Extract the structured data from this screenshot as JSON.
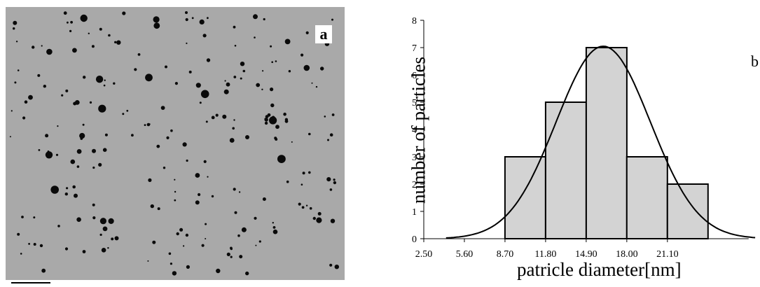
{
  "figure": {
    "panel_a_label": "a",
    "panel_b_label": "b"
  },
  "micrograph": {
    "background_color": "#a9a9a9",
    "particle_color": "#0a0a0a",
    "has_scale_bar": true
  },
  "chart_data": {
    "type": "bar",
    "title": "",
    "xlabel": "patricle diameter[nm]",
    "ylabel": "number of particles",
    "x_ticks": [
      "2.50",
      "5.60",
      "8.70",
      "11.80",
      "14.90",
      "18.00",
      "21.10"
    ],
    "bins": [
      {
        "from": 8.7,
        "to": 11.8,
        "count": 3
      },
      {
        "from": 11.8,
        "to": 14.9,
        "count": 5
      },
      {
        "from": 14.9,
        "to": 18.0,
        "count": 7
      },
      {
        "from": 18.0,
        "to": 21.1,
        "count": 3
      },
      {
        "from": 21.1,
        "to": 24.2,
        "count": 2
      }
    ],
    "fit_curve": {
      "type": "normal",
      "mean": 16.2,
      "sd": 3.6,
      "peak": 7.05,
      "x_range": [
        4.2,
        27.8
      ]
    },
    "xlim": [
      2.5,
      27.3
    ],
    "ylim": [
      0,
      8
    ],
    "y_ticks": [
      "0",
      "1",
      "2",
      "3",
      "4",
      "5",
      "6",
      "7",
      "8"
    ],
    "bar_color": "#d3d3d3",
    "edge_color": "#000000",
    "grid": false,
    "legend": "none"
  }
}
